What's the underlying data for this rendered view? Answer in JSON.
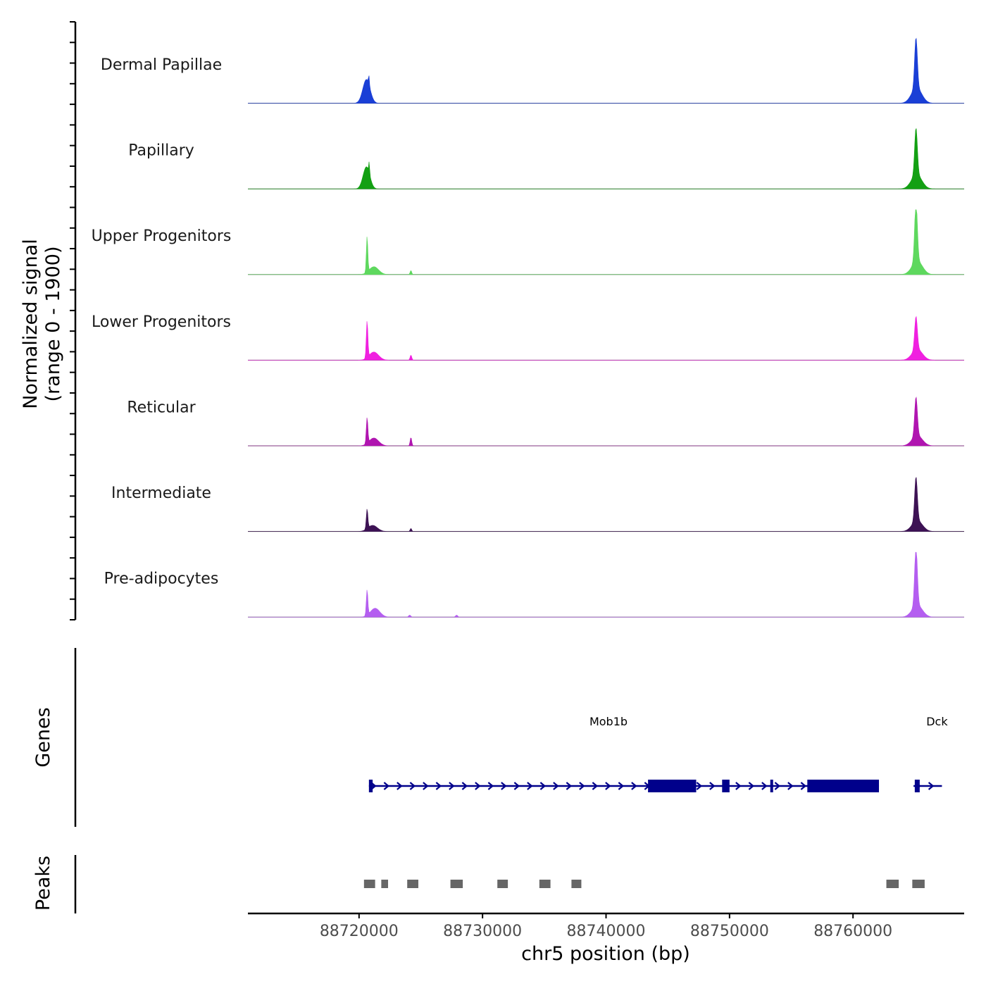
{
  "chart_data": {
    "type": "area",
    "title": "",
    "xlabel": "chr5 position (bp)",
    "ylabel_line1": "Normalized signal",
    "ylabel_line2": "(range 0 - 1900)",
    "xlim": [
      88711000,
      88769000
    ],
    "ylim": [
      0,
      1900
    ],
    "x_ticks": [
      88720000,
      88730000,
      88740000,
      88750000,
      88760000
    ],
    "x_tick_labels": [
      "88720000",
      "88730000",
      "88740000",
      "88750000",
      "88760000"
    ],
    "series": [
      {
        "name": "Dermal Papillae",
        "color": "#1a3fd6",
        "peaks": [
          {
            "center": 88720600,
            "height": 700,
            "width": 700
          },
          {
            "center": 88720800,
            "height": 270,
            "width": 90
          },
          {
            "center": 88765100,
            "height": 1500,
            "width": 260
          },
          {
            "center": 88765150,
            "height": 450,
            "width": 1000
          }
        ]
      },
      {
        "name": "Papillary",
        "color": "#13a013",
        "peaks": [
          {
            "center": 88720600,
            "height": 650,
            "width": 650
          },
          {
            "center": 88720820,
            "height": 320,
            "width": 90
          },
          {
            "center": 88765100,
            "height": 1380,
            "width": 260
          },
          {
            "center": 88765150,
            "height": 420,
            "width": 1000
          }
        ]
      },
      {
        "name": "Upper Progenitors",
        "color": "#5ed85e",
        "peaks": [
          {
            "center": 88720650,
            "height": 1050,
            "width": 140
          },
          {
            "center": 88721200,
            "height": 230,
            "width": 900
          },
          {
            "center": 88724200,
            "height": 120,
            "width": 150
          },
          {
            "center": 88765100,
            "height": 1780,
            "width": 260
          },
          {
            "center": 88765200,
            "height": 400,
            "width": 1000
          }
        ]
      },
      {
        "name": "Lower Progenitors",
        "color": "#f020e0",
        "peaks": [
          {
            "center": 88720650,
            "height": 1080,
            "width": 150
          },
          {
            "center": 88721200,
            "height": 240,
            "width": 900
          },
          {
            "center": 88724200,
            "height": 150,
            "width": 160
          },
          {
            "center": 88765100,
            "height": 980,
            "width": 260
          },
          {
            "center": 88765200,
            "height": 320,
            "width": 1000
          }
        ]
      },
      {
        "name": "Reticular",
        "color": "#b015b0",
        "peaks": [
          {
            "center": 88720650,
            "height": 760,
            "width": 150
          },
          {
            "center": 88721200,
            "height": 230,
            "width": 900
          },
          {
            "center": 88724200,
            "height": 250,
            "width": 150
          },
          {
            "center": 88765100,
            "height": 1150,
            "width": 260
          },
          {
            "center": 88765200,
            "height": 300,
            "width": 1000
          }
        ]
      },
      {
        "name": "Intermediate",
        "color": "#3d1254",
        "peaks": [
          {
            "center": 88720650,
            "height": 580,
            "width": 150
          },
          {
            "center": 88721100,
            "height": 180,
            "width": 900
          },
          {
            "center": 88724200,
            "height": 90,
            "width": 150
          },
          {
            "center": 88765100,
            "height": 1300,
            "width": 260
          },
          {
            "center": 88765200,
            "height": 320,
            "width": 1000
          }
        ]
      },
      {
        "name": "Pre-adipocytes",
        "color": "#b45ef0",
        "peaks": [
          {
            "center": 88720650,
            "height": 750,
            "width": 150
          },
          {
            "center": 88721300,
            "height": 260,
            "width": 900
          },
          {
            "center": 88724100,
            "height": 60,
            "width": 200
          },
          {
            "center": 88727900,
            "height": 60,
            "width": 200
          },
          {
            "center": 88765100,
            "height": 1750,
            "width": 260
          },
          {
            "center": 88765200,
            "height": 350,
            "width": 1000
          }
        ]
      }
    ],
    "genes_track": {
      "label": "Genes",
      "color": "#00008b",
      "genes": [
        {
          "name": "Mob1b",
          "start": 88720800,
          "end": 88762100,
          "strand": "+",
          "exons": [
            [
              88720800,
              88721100
            ],
            [
              88743400,
              88747300
            ],
            [
              88749400,
              88750000
            ],
            [
              88753300,
              88753400
            ],
            [
              88756300,
              88762100
            ]
          ]
        },
        {
          "name": "Dck",
          "start": 88764900,
          "end": 88767200,
          "strand": "+",
          "exons": [
            [
              88765000,
              88765400
            ]
          ]
        }
      ]
    },
    "peaks_track": {
      "label": "Peaks",
      "color": "#666666",
      "intervals": [
        [
          88720400,
          88721300
        ],
        [
          88721800,
          88722350
        ],
        [
          88723900,
          88724800
        ],
        [
          88727400,
          88728400
        ],
        [
          88731200,
          88732050
        ],
        [
          88734600,
          88735500
        ],
        [
          88737200,
          88738000
        ],
        [
          88762700,
          88763700
        ],
        [
          88764800,
          88765800
        ]
      ]
    }
  }
}
